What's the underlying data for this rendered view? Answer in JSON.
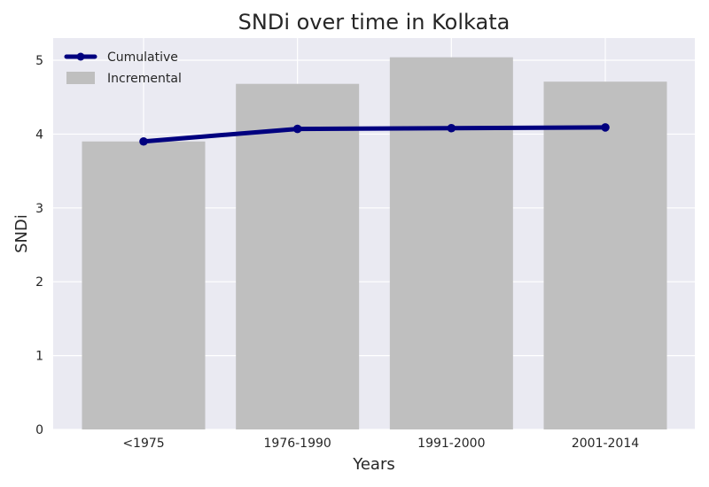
{
  "chart_data": {
    "type": "bar",
    "title": "SNDi over time in Kolkata",
    "xlabel": "Years",
    "ylabel": "SNDi",
    "categories": [
      "<1975",
      "1976-1990",
      "1991-2000",
      "2001-2014"
    ],
    "series": [
      {
        "name": "Incremental",
        "type": "bar",
        "values": [
          3.9,
          4.68,
          5.04,
          4.71
        ],
        "color": "#bfbfbf"
      },
      {
        "name": "Cumulative",
        "type": "line",
        "values": [
          3.9,
          4.07,
          4.08,
          4.09
        ],
        "color": "#00007f"
      }
    ],
    "ylim": [
      0,
      5.3
    ],
    "yticks": [
      0,
      1,
      2,
      3,
      4,
      5
    ],
    "grid": true,
    "legend_position": "top-left",
    "background_color": "#eaeaf2",
    "grid_color": "#ffffff"
  }
}
